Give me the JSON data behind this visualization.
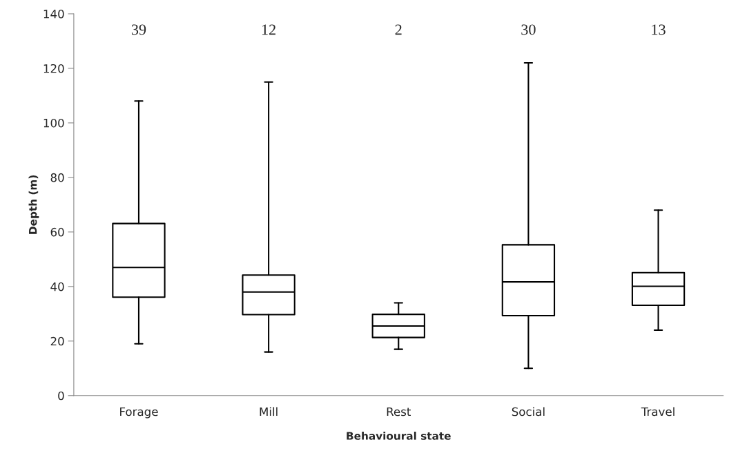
{
  "chart_data": {
    "type": "box",
    "xlabel": "Behavioural state",
    "ylabel": "Depth (m)",
    "categories": [
      "Forage",
      "Mill",
      "Rest",
      "Social",
      "Travel"
    ],
    "boxes": [
      {
        "low": 19,
        "q1": 36.1,
        "median": 47,
        "q3": 63.1,
        "high": 108
      },
      {
        "low": 16,
        "q1": 29.7,
        "median": 38,
        "q3": 44.2,
        "high": 115
      },
      {
        "low": 17,
        "q1": 21.3,
        "median": 25.5,
        "q3": 29.8,
        "high": 34
      },
      {
        "low": 10,
        "q1": 29.3,
        "median": 41.7,
        "q3": 55.3,
        "high": 122
      },
      {
        "low": 24,
        "q1": 33.1,
        "median": 40.1,
        "q3": 45.1,
        "high": 68
      }
    ],
    "color": "#000000",
    "ylim": [
      0,
      140
    ],
    "yticks": [
      0,
      20,
      40,
      60,
      80,
      100,
      120,
      140
    ],
    "grid": false,
    "annotations": [
      "39",
      "12",
      "2",
      "30",
      "13"
    ]
  }
}
